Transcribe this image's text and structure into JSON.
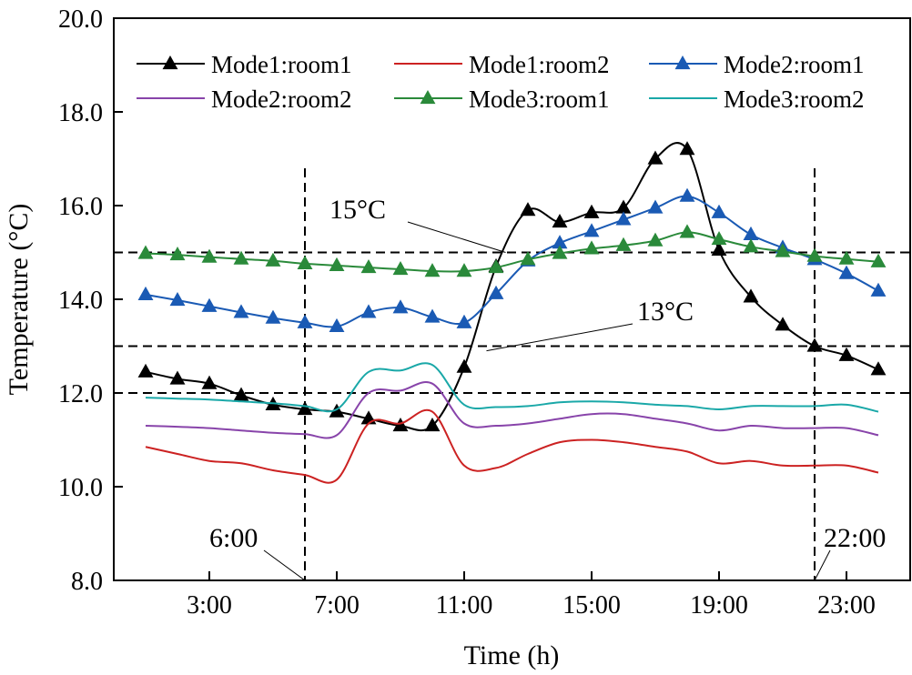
{
  "chart_data": {
    "type": "line",
    "xlabel": "Time (h)",
    "ylabel": "Temperature (°C)",
    "xlim": [
      0,
      25
    ],
    "ylim": [
      8.0,
      20.0
    ],
    "x_ticks": [
      {
        "x": 3,
        "label": "3:00"
      },
      {
        "x": 7,
        "label": "7:00"
      },
      {
        "x": 11,
        "label": "11:00"
      },
      {
        "x": 15,
        "label": "15:00"
      },
      {
        "x": 19,
        "label": "19:00"
      },
      {
        "x": 23,
        "label": "23:00"
      }
    ],
    "y_ticks": [
      {
        "y": 8,
        "label": "8.0"
      },
      {
        "y": 10,
        "label": "10.0"
      },
      {
        "y": 12,
        "label": "12.0"
      },
      {
        "y": 14,
        "label": "14.0"
      },
      {
        "y": 16,
        "label": "16.0"
      },
      {
        "y": 18,
        "label": "18.0"
      },
      {
        "y": 20,
        "label": "20.0"
      }
    ],
    "legend": "top",
    "x": [
      1,
      2,
      3,
      4,
      5,
      6,
      7,
      8,
      9,
      10,
      11,
      12,
      13,
      14,
      15,
      16,
      17,
      18,
      19,
      20,
      21,
      22,
      23,
      24
    ],
    "series": [
      {
        "name": "Mode1:room1",
        "color": "#000000",
        "marker": "triangle",
        "values": [
          12.45,
          12.3,
          12.2,
          11.95,
          11.75,
          11.65,
          11.6,
          11.45,
          11.3,
          11.3,
          12.55,
          14.7,
          15.9,
          15.65,
          15.85,
          15.95,
          17.0,
          17.2,
          15.05,
          14.05,
          13.45,
          13.0,
          12.8,
          12.5
        ]
      },
      {
        "name": "Mode1:room2",
        "color": "#cc2222",
        "marker": "none",
        "values": [
          10.85,
          10.7,
          10.55,
          10.5,
          10.35,
          10.25,
          10.15,
          11.35,
          11.35,
          11.6,
          10.45,
          10.4,
          10.7,
          10.95,
          11.0,
          10.95,
          10.85,
          10.75,
          10.5,
          10.55,
          10.45,
          10.45,
          10.45,
          10.3
        ]
      },
      {
        "name": "Mode2:room1",
        "color": "#1a5ab4",
        "marker": "triangle",
        "values": [
          14.1,
          13.98,
          13.85,
          13.72,
          13.6,
          13.5,
          13.42,
          13.72,
          13.82,
          13.62,
          13.5,
          14.12,
          14.82,
          15.2,
          15.45,
          15.7,
          15.95,
          16.2,
          15.85,
          15.38,
          15.1,
          14.85,
          14.55,
          14.18
        ]
      },
      {
        "name": "Mode2:room2",
        "color": "#8844aa",
        "marker": "none",
        "values": [
          11.3,
          11.28,
          11.25,
          11.2,
          11.15,
          11.12,
          11.1,
          12.0,
          12.05,
          12.2,
          11.35,
          11.3,
          11.35,
          11.45,
          11.55,
          11.55,
          11.45,
          11.35,
          11.2,
          11.3,
          11.25,
          11.25,
          11.25,
          11.1
        ]
      },
      {
        "name": "Mode3:room1",
        "color": "#2a8a3a",
        "marker": "triangle",
        "values": [
          14.98,
          14.95,
          14.9,
          14.86,
          14.82,
          14.76,
          14.72,
          14.68,
          14.64,
          14.6,
          14.6,
          14.68,
          14.85,
          14.98,
          15.08,
          15.15,
          15.25,
          15.43,
          15.28,
          15.12,
          15.02,
          14.92,
          14.86,
          14.8
        ]
      },
      {
        "name": "Mode3:room2",
        "color": "#1aa8a8",
        "marker": "none",
        "values": [
          11.9,
          11.88,
          11.86,
          11.82,
          11.78,
          11.72,
          11.65,
          12.45,
          12.48,
          12.6,
          11.75,
          11.7,
          11.72,
          11.8,
          11.82,
          11.8,
          11.75,
          11.72,
          11.65,
          11.72,
          11.72,
          11.72,
          11.75,
          11.6
        ]
      }
    ],
    "reference_lines": {
      "horizontal": [
        15,
        13,
        12
      ],
      "vertical": [
        6,
        22
      ]
    },
    "annotations": [
      {
        "text": "15°C",
        "points_to_x": 12.3,
        "points_to_y": 15.0
      },
      {
        "text": "13°C",
        "points_to_x": 11.7,
        "points_to_y": 12.9
      },
      {
        "text": "6:00",
        "points_to_x": 6,
        "points_to_y": 8.0
      },
      {
        "text": "22:00",
        "points_to_x": 22,
        "points_to_y": 8.0
      }
    ]
  }
}
